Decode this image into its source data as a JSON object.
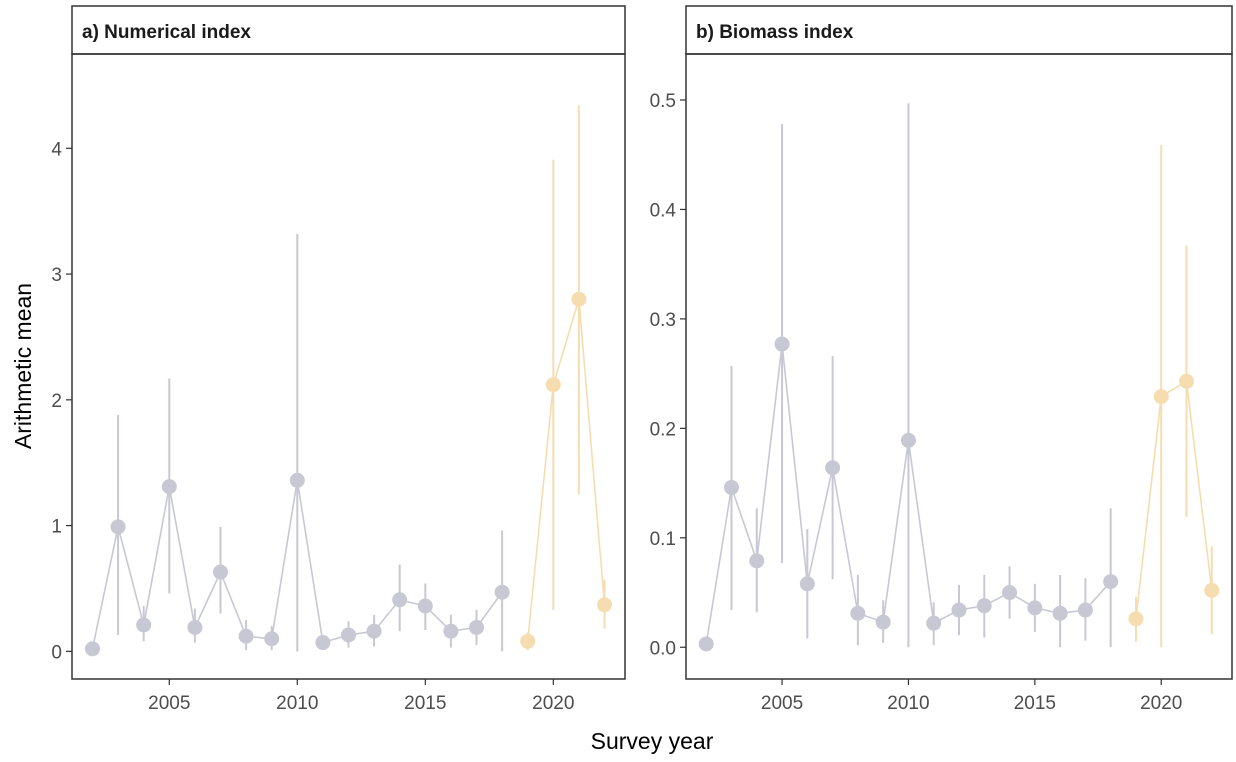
{
  "figure": {
    "xlabel": "Survey year",
    "ylabel": "Arithmetic mean"
  },
  "colors": {
    "early_period": "#c8c8d4",
    "recent_period": "#f5ddb0",
    "panel_border": "#333333",
    "tick_text": "#4d4d4d"
  },
  "chart_data": [
    {
      "type": "line",
      "title": "a) Numerical index",
      "xlabel": "Survey year",
      "ylabel": "Arithmetic mean",
      "xlim": [
        2001.2,
        2022.8
      ],
      "ylim": [
        -0.22,
        4.75
      ],
      "xticks": [
        2005,
        2010,
        2015,
        2020
      ],
      "xtick_labels": [
        "2005",
        "2010",
        "2015",
        "2020"
      ],
      "yticks": [
        0,
        1,
        2,
        3,
        4
      ],
      "ytick_labels": [
        "0",
        "1",
        "2",
        "3",
        "4"
      ],
      "grid": false,
      "series": [
        {
          "color": "#c8c8d4",
          "x": [
            2002,
            2003,
            2004,
            2005,
            2006,
            2007,
            2008,
            2009,
            2010,
            2011,
            2012,
            2013,
            2014,
            2015,
            2016,
            2017,
            2018
          ],
          "y": [
            0.02,
            0.99,
            0.21,
            1.31,
            0.19,
            0.63,
            0.12,
            0.1,
            1.36,
            0.07,
            0.13,
            0.16,
            0.41,
            0.36,
            0.16,
            0.19,
            0.47
          ],
          "lower": [
            0.0,
            0.13,
            0.08,
            0.46,
            0.07,
            0.3,
            0.01,
            0.01,
            0.0,
            0.01,
            0.03,
            0.04,
            0.16,
            0.17,
            0.03,
            0.05,
            0.0
          ],
          "upper": [
            0.04,
            1.88,
            0.36,
            2.17,
            0.34,
            0.99,
            0.25,
            0.2,
            3.32,
            0.13,
            0.24,
            0.29,
            0.69,
            0.54,
            0.29,
            0.33,
            0.96
          ]
        },
        {
          "color": "#f5ddb0",
          "x": [
            2019,
            2020,
            2021,
            2022
          ],
          "y": [
            0.08,
            2.12,
            2.8,
            0.37
          ],
          "lower": [
            0.01,
            0.33,
            1.25,
            0.18
          ],
          "upper": [
            0.15,
            3.91,
            4.34,
            0.57
          ]
        }
      ]
    },
    {
      "type": "line",
      "title": "b) Biomass index",
      "xlabel": "Survey year",
      "ylabel": "Arithmetic mean",
      "xlim": [
        2001.2,
        2022.8
      ],
      "ylim": [
        -0.029,
        0.542
      ],
      "xticks": [
        2005,
        2010,
        2015,
        2020
      ],
      "xtick_labels": [
        "2005",
        "2010",
        "2015",
        "2020"
      ],
      "yticks": [
        0.0,
        0.1,
        0.2,
        0.3,
        0.4,
        0.5
      ],
      "ytick_labels": [
        "0.0",
        "0.1",
        "0.2",
        "0.3",
        "0.4",
        "0.5"
      ],
      "grid": false,
      "series": [
        {
          "color": "#c8c8d4",
          "x": [
            2002,
            2003,
            2004,
            2005,
            2006,
            2007,
            2008,
            2009,
            2010,
            2011,
            2012,
            2013,
            2014,
            2015,
            2016,
            2017,
            2018
          ],
          "y": [
            0.003,
            0.146,
            0.079,
            0.277,
            0.058,
            0.164,
            0.031,
            0.023,
            0.189,
            0.022,
            0.034,
            0.038,
            0.05,
            0.036,
            0.031,
            0.034,
            0.06
          ],
          "lower": [
            0.0,
            0.034,
            0.032,
            0.077,
            0.008,
            0.062,
            0.002,
            0.004,
            0.0,
            0.002,
            0.011,
            0.009,
            0.026,
            0.014,
            0.0,
            0.006,
            0.0
          ],
          "upper": [
            0.006,
            0.257,
            0.127,
            0.478,
            0.108,
            0.266,
            0.066,
            0.043,
            0.497,
            0.041,
            0.057,
            0.066,
            0.074,
            0.058,
            0.066,
            0.063,
            0.127
          ]
        },
        {
          "color": "#f5ddb0",
          "x": [
            2019,
            2020,
            2021,
            2022
          ],
          "y": [
            0.026,
            0.229,
            0.243,
            0.052
          ],
          "lower": [
            0.005,
            0.0,
            0.119,
            0.012
          ],
          "upper": [
            0.046,
            0.459,
            0.367,
            0.092
          ]
        }
      ]
    }
  ]
}
